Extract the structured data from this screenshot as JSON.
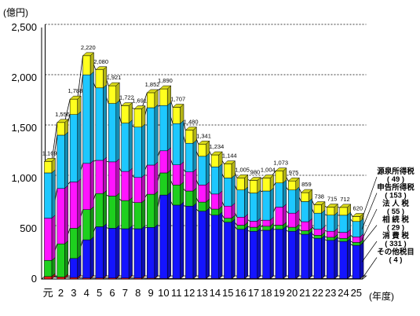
{
  "chart_data": {
    "type": "bar",
    "stacked": true,
    "style": "3d-stacked-with-connector-lines",
    "y_unit": "(億円)",
    "x_unit": "(年度)",
    "ylim": [
      0,
      2500
    ],
    "yticks": [
      0,
      500,
      1000,
      1500,
      2000,
      2500
    ],
    "ytick_labels": [
      "0",
      "500",
      "1,000",
      "1,500",
      "2,000",
      "2,500"
    ],
    "grid": "dashed-horizontal",
    "categories": [
      "元",
      "2",
      "3",
      "4",
      "5",
      "6",
      "7",
      "8",
      "9",
      "10",
      "11",
      "12",
      "13",
      "14",
      "15",
      "16",
      "17",
      "18",
      "19",
      "20",
      "21",
      "22",
      "23",
      "24",
      "25"
    ],
    "totals": [
      1169,
      1556,
      1788,
      2220,
      2080,
      1921,
      1722,
      1691,
      1852,
      1890,
      1707,
      1480,
      1341,
      1234,
      1144,
      1005,
      980,
      1004,
      1073,
      975,
      859,
      738,
      715,
      712,
      620
    ],
    "total_labels": [
      "1,169",
      "1,556",
      "1,788",
      "2,220",
      "2,080",
      "1,921",
      "1,722",
      "1,691",
      "1,852",
      "1,890",
      "1,707",
      "1,480",
      "1,341",
      "1,234",
      "1,144",
      "1,005",
      "980",
      "1,004",
      "1,073",
      "975",
      "859",
      "738",
      "715",
      "712",
      "620"
    ],
    "colors": {
      "other": "#e8191a",
      "consumption": "#1414ff",
      "inheritance": "#1ed01e",
      "corporate": "#ff14ff",
      "declared_income": "#1ec8ff",
      "withholding": "#ffff1e"
    },
    "series": [
      {
        "key": "other",
        "name": "その他税目",
        "legend_value": "( 4 )",
        "values": [
          25,
          20,
          15,
          10,
          10,
          10,
          10,
          10,
          8,
          5,
          5,
          5,
          5,
          5,
          5,
          5,
          5,
          5,
          5,
          5,
          5,
          5,
          5,
          4,
          4
        ]
      },
      {
        "key": "consumption",
        "name": "消 費 税",
        "legend_value": "( 331 )",
        "values": [
          0,
          0,
          190,
          380,
          510,
          495,
          490,
          490,
          505,
          830,
          730,
          720,
          670,
          630,
          560,
          490,
          470,
          480,
          490,
          470,
          440,
          400,
          380,
          370,
          331
        ]
      },
      {
        "key": "inheritance",
        "name": "相 続 税",
        "legend_value": "( 29 )",
        "values": [
          160,
          330,
          300,
          300,
          330,
          320,
          280,
          260,
          330,
          220,
          200,
          150,
          90,
          60,
          40,
          40,
          40,
          40,
          40,
          40,
          35,
          30,
          30,
          30,
          29
        ]
      },
      {
        "key": "corporate",
        "name": "法 人 税",
        "legend_value": "( 55 )",
        "values": [
          420,
          550,
          460,
          460,
          330,
          340,
          290,
          250,
          290,
          220,
          200,
          190,
          170,
          150,
          120,
          80,
          60,
          60,
          180,
          140,
          90,
          60,
          60,
          60,
          55
        ]
      },
      {
        "key": "declared_income",
        "name": "申告所得税",
        "legend_value": "( 153 )",
        "values": [
          450,
          530,
          670,
          880,
          720,
          580,
          480,
          500,
          570,
          450,
          410,
          285,
          285,
          270,
          280,
          270,
          280,
          290,
          240,
          230,
          200,
          160,
          160,
          170,
          153
        ]
      },
      {
        "key": "withholding",
        "name": "源泉所得税",
        "legend_value": "( 49 )",
        "values": [
          114,
          126,
          153,
          190,
          180,
          176,
          172,
          181,
          149,
          165,
          162,
          130,
          121,
          119,
          139,
          120,
          125,
          129,
          118,
          90,
          89,
          83,
          80,
          78,
          49
        ]
      }
    ]
  }
}
